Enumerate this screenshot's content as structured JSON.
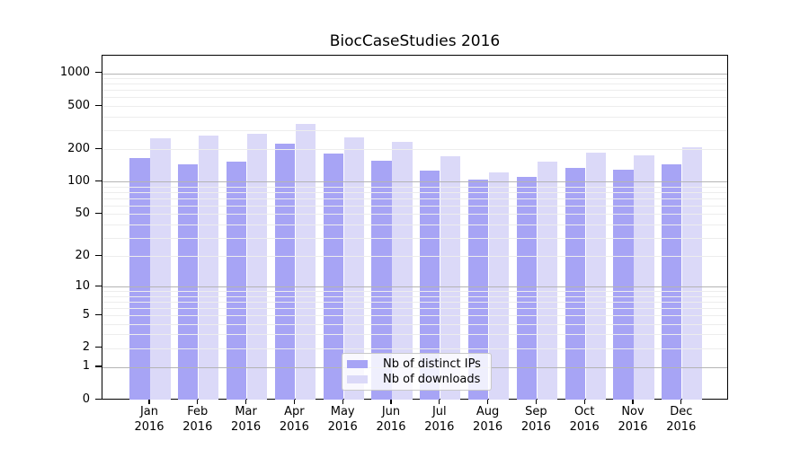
{
  "title": "BiocCaseStudies 2016",
  "chart_data": {
    "type": "bar",
    "title": "BiocCaseStudies 2016",
    "x_categories": [
      "Jan 2016",
      "Feb 2016",
      "Mar 2016",
      "Apr 2016",
      "May 2016",
      "Jun 2016",
      "Jul 2016",
      "Aug 2016",
      "Sep 2016",
      "Oct 2016",
      "Nov 2016",
      "Dec 2016"
    ],
    "series": [
      {
        "name": "Nb of distinct IPs",
        "color": "#a7a4f5",
        "values": [
          165,
          145,
          155,
          226,
          184,
          157,
          126,
          104,
          110,
          134,
          129,
          144
        ]
      },
      {
        "name": "Nb of downloads",
        "color": "#dbd9f8",
        "values": [
          252,
          268,
          280,
          345,
          257,
          235,
          171,
          122,
          154,
          186,
          175,
          210
        ]
      }
    ],
    "y_scale": "log10(1+x)",
    "y_ticks": [
      0,
      1,
      2,
      5,
      10,
      20,
      50,
      100,
      200,
      500,
      1000
    ],
    "y_minor_gridlines": [
      2,
      3,
      4,
      5,
      6,
      7,
      8,
      9,
      20,
      30,
      40,
      50,
      60,
      70,
      80,
      90,
      200,
      300,
      400,
      500,
      600,
      700,
      800,
      900
    ],
    "y_major_gridlines": [
      1,
      10,
      100,
      1000
    ],
    "y_max": 1451,
    "grid": "on",
    "legend_position": "bottom-center",
    "colors": {
      "minor_grid": "#ededed",
      "major_grid": "#b4b4b4",
      "axis": "#000000",
      "background": "#ffffff"
    }
  }
}
